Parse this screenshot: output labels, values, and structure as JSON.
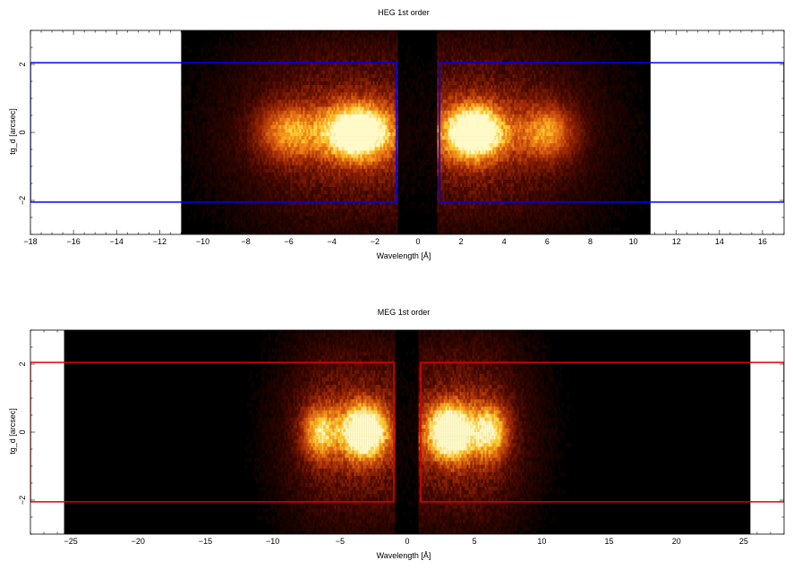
{
  "chart_data": [
    {
      "type": "heatmap",
      "title": "HEG 1st order",
      "xlabel": "Wavelength [Å]",
      "ylabel": "tg_d [arcsec]",
      "xlim": [
        -18,
        17
      ],
      "ylim": [
        -3,
        3
      ],
      "xticks": [
        -18,
        -16,
        -14,
        -12,
        -10,
        -8,
        -6,
        -4,
        -2,
        0,
        2,
        4,
        6,
        8,
        10,
        12,
        14,
        16
      ],
      "yticks": [
        -2,
        0,
        2
      ],
      "image_extent": {
        "x": [
          -11,
          10.8
        ],
        "y": [
          -3,
          3
        ]
      },
      "blobs": [
        {
          "x": -2.8,
          "sigma": 1.1,
          "peak": 1.0
        },
        {
          "x": -6.0,
          "sigma": 1.0,
          "peak": 0.45
        },
        {
          "x": 2.6,
          "sigma": 1.0,
          "peak": 1.0
        },
        {
          "x": 6.0,
          "sigma": 0.9,
          "peak": 0.45
        }
      ],
      "regions": [
        {
          "x": [
            -18,
            -1
          ],
          "y": [
            -2.05,
            2.05
          ]
        },
        {
          "x": [
            1,
            17
          ],
          "y": [
            -2.05,
            2.05
          ]
        }
      ],
      "region_color": "#0000ff"
    },
    {
      "type": "heatmap",
      "title": "MEG 1st order",
      "xlabel": "Wavelength [Å]",
      "ylabel": "tg_d [arcsec]",
      "xlim": [
        -28,
        28
      ],
      "ylim": [
        -3,
        3
      ],
      "xticks": [
        -25,
        -20,
        -15,
        -10,
        -5,
        0,
        5,
        10,
        15,
        20,
        25
      ],
      "yticks": [
        -2,
        0,
        2
      ],
      "image_extent": {
        "x": [
          -25.5,
          25.5
        ],
        "y": [
          -3,
          3
        ]
      },
      "blobs": [
        {
          "x": -3.2,
          "sigma": 1.2,
          "peak": 1.0
        },
        {
          "x": -6.5,
          "sigma": 0.9,
          "peak": 0.55
        },
        {
          "x": 3.2,
          "sigma": 1.2,
          "peak": 1.0
        },
        {
          "x": 6.2,
          "sigma": 0.9,
          "peak": 0.6
        }
      ],
      "regions": [
        {
          "x": [
            -28,
            -1
          ],
          "y": [
            -2.05,
            2.05
          ]
        },
        {
          "x": [
            1,
            28
          ],
          "y": [
            -2.05,
            2.05
          ]
        }
      ],
      "region_color": "#e00000"
    }
  ]
}
